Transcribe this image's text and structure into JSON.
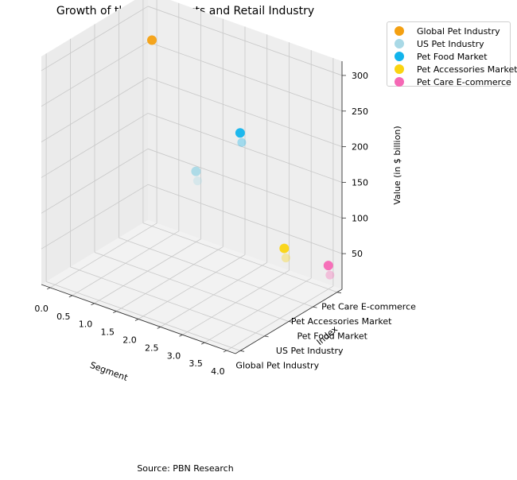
{
  "chart_data": {
    "type": "scatter",
    "title": "Growth of the Pet Products and Retail Industry",
    "xlabel": "Segment",
    "ylabel": "Index",
    "zlabel": "Value (in $ billion)",
    "x_ticks": [
      "0.0",
      "0.5",
      "1.0",
      "1.5",
      "2.0",
      "2.5",
      "3.0",
      "3.5",
      "4.0"
    ],
    "y_ticks": [
      "Global Pet Industry",
      "US Pet Industry",
      "Pet Food Market",
      "Pet Accessories Market",
      "Pet Care E-commerce"
    ],
    "z_ticks": [
      "50",
      "100",
      "150",
      "200",
      "250",
      "300"
    ],
    "xlim": [
      -0.2,
      4.2
    ],
    "ylim": [
      -0.2,
      4.2
    ],
    "zlim": [
      0,
      320
    ],
    "grid": true,
    "legend_position": "outside-top-right",
    "source": "Source: PBN Research",
    "series": [
      {
        "name": "Global Pet Industry",
        "color": "#f4a011",
        "points": [
          {
            "x": 0,
            "y": 4,
            "z": 261
          }
        ]
      },
      {
        "name": "US Pet Industry",
        "color": "#a9d9e6",
        "points": [
          {
            "x": 1,
            "y": 4,
            "z": 99
          }
        ]
      },
      {
        "name": "Pet Food Market",
        "color": "#12b4ec",
        "points": [
          {
            "x": 2,
            "y": 4,
            "z": 175
          }
        ]
      },
      {
        "name": "Pet Accessories Market",
        "color": "#fad411",
        "points": [
          {
            "x": 3,
            "y": 4,
            "z": 35
          }
        ]
      },
      {
        "name": "Pet Care E-commerce",
        "color": "#f568b5",
        "points": [
          {
            "x": 4,
            "y": 4,
            "z": 33
          }
        ]
      }
    ]
  }
}
